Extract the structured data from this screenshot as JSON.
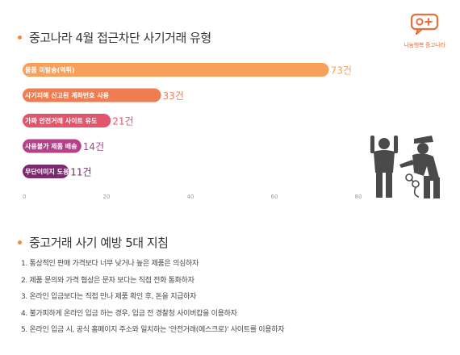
{
  "section1": {
    "title": "중고나라 4월 접근차단 사기거래 유형"
  },
  "section2": {
    "title": "중고거래 사기 예방 5대 지침"
  },
  "logo": {
    "text": "나눔행복 중고나라",
    "icon": "chat-bubble-plus-icon",
    "color": "#e8703a"
  },
  "illustration": {
    "icon": "police-arrest-icon"
  },
  "chart_data": {
    "type": "bar",
    "orientation": "horizontal",
    "categories": [
      "물품 미발송(먹튀)",
      "사기피해 신고된 계좌번호 사용",
      "가짜 안전거래 사이트 유도",
      "사용불가 제품 배송",
      "무단이미지 도용"
    ],
    "values": [
      73,
      33,
      21,
      14,
      11
    ],
    "value_labels": [
      "73건",
      "33건",
      "21건",
      "14건",
      "11건"
    ],
    "colors": [
      "#f5a15c",
      "#ee7d52",
      "#e2566b",
      "#b5418b",
      "#7b2a6e"
    ],
    "xlim": [
      0,
      80
    ],
    "xticks": [
      0,
      20,
      40,
      60,
      80
    ],
    "grid": false
  },
  "tips": [
    "1. 통상적인 판매 가격보다 너무 낮거나 높은 제품은 의심하자",
    "2. 제품 문의와 가격 협상은 문자 보다는 직접 전화 통화하자",
    "3. 온라인 입금보다는 직접 만나 제품 확인 후, 돈을 지급하자",
    "4. 불가피하게 온라인 입금 하는 경우, 입금 전 경찰청 사이버캅을 이용하자",
    "5. 온라인 입금 시, 공식 홈페이지 주소와 일치하는 '안전거래(에스크로)' 사이트를 이용하자"
  ]
}
